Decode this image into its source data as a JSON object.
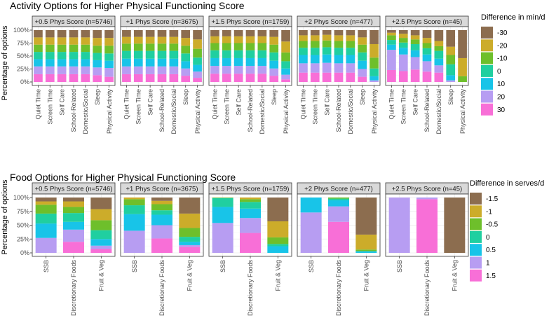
{
  "chart_data": [
    {
      "type": "bar",
      "stacked": "percent",
      "title": "Activity Options for Higher Physical Functioning Score",
      "ylabel": "Percentage of options",
      "xlabel": "",
      "ylim": [
        0,
        1
      ],
      "y_ticks": [
        "0%",
        "25%",
        "50%",
        "75%",
        "100%"
      ],
      "categories": [
        "Quiet Time",
        "Screen Time",
        "Self Care",
        "School-Related",
        "Domestic/Social",
        "Sleep",
        "Physical Activity"
      ],
      "legend": {
        "title": "Difference in min/d",
        "placement": "right",
        "levels": [
          "-30",
          "-20",
          "-10",
          "0",
          "10",
          "20",
          "30"
        ],
        "colors": [
          "#8c6d4f",
          "#ccac2a",
          "#6ebf2b",
          "#20cfa0",
          "#18c4e8",
          "#b79df2",
          "#f86fd7"
        ]
      },
      "facets": [
        {
          "label": "+0.5 Phys Score (n=5746)",
          "stacks": [
            [
              0.14,
              0.14,
              0.14,
              0.14,
              0.14,
              0.15,
              0.15
            ],
            [
              0.14,
              0.14,
              0.14,
              0.14,
              0.14,
              0.15,
              0.15
            ],
            [
              0.14,
              0.14,
              0.14,
              0.14,
              0.14,
              0.14,
              0.15
            ],
            [
              0.14,
              0.14,
              0.14,
              0.14,
              0.14,
              0.14,
              0.14
            ],
            [
              0.14,
              0.14,
              0.14,
              0.14,
              0.14,
              0.14,
              0.14
            ],
            [
              0.15,
              0.15,
              0.15,
              0.15,
              0.15,
              0.15,
              0.17
            ],
            [
              0.15,
              0.15,
              0.15,
              0.15,
              0.15,
              0.13,
              0.1
            ]
          ]
        },
        {
          "label": "+1 Phys Score (n=3675)",
          "stacks": [
            [
              0.13,
              0.13,
              0.13,
              0.13,
              0.13,
              0.15,
              0.18
            ],
            [
              0.13,
              0.13,
              0.13,
              0.13,
              0.13,
              0.15,
              0.18
            ],
            [
              0.14,
              0.14,
              0.14,
              0.14,
              0.14,
              0.15,
              0.17
            ],
            [
              0.15,
              0.15,
              0.15,
              0.15,
              0.15,
              0.15,
              0.14
            ],
            [
              0.15,
              0.15,
              0.15,
              0.15,
              0.15,
              0.14,
              0.13
            ],
            [
              0.15,
              0.15,
              0.15,
              0.15,
              0.15,
              0.14,
              0.12
            ],
            [
              0.15,
              0.15,
              0.15,
              0.15,
              0.15,
              0.12,
              0.08
            ]
          ]
        },
        {
          "label": "+1.5 Phys Score (n=1759)",
          "stacks": [
            [
              0.12,
              0.12,
              0.12,
              0.12,
              0.12,
              0.13,
              0.22
            ],
            [
              0.13,
              0.13,
              0.13,
              0.13,
              0.13,
              0.15,
              0.21
            ],
            [
              0.14,
              0.14,
              0.14,
              0.14,
              0.14,
              0.15,
              0.17
            ],
            [
              0.15,
              0.15,
              0.15,
              0.15,
              0.15,
              0.16,
              0.14
            ],
            [
              0.15,
              0.15,
              0.15,
              0.15,
              0.15,
              0.15,
              0.12
            ],
            [
              0.15,
              0.15,
              0.15,
              0.15,
              0.15,
              0.14,
              0.09
            ],
            [
              0.16,
              0.16,
              0.16,
              0.16,
              0.16,
              0.12,
              0.05
            ]
          ]
        },
        {
          "label": "+2 Phys Score (n=477)",
          "stacks": [
            [
              0.1,
              0.1,
              0.09,
              0.1,
              0.1,
              0.14,
              0.27
            ],
            [
              0.11,
              0.11,
              0.11,
              0.11,
              0.11,
              0.14,
              0.26
            ],
            [
              0.13,
              0.13,
              0.13,
              0.13,
              0.13,
              0.15,
              0.21
            ],
            [
              0.14,
              0.14,
              0.14,
              0.14,
              0.14,
              0.16,
              0.15
            ],
            [
              0.16,
              0.16,
              0.16,
              0.16,
              0.16,
              0.16,
              0.08
            ],
            [
              0.18,
              0.18,
              0.19,
              0.18,
              0.18,
              0.15,
              0.03
            ],
            [
              0.18,
              0.18,
              0.18,
              0.18,
              0.18,
              0.1,
              0.0
            ]
          ]
        },
        {
          "label": "+2.5 Phys Score (n=45)",
          "stacks": [
            [
              0.05,
              0.07,
              0.1,
              0.15,
              0.21,
              0.32,
              0.54
            ],
            [
              0.05,
              0.08,
              0.08,
              0.1,
              0.1,
              0.16,
              0.35
            ],
            [
              0.09,
              0.09,
              0.09,
              0.1,
              0.09,
              0.18,
              0.11
            ],
            [
              0.09,
              0.1,
              0.12,
              0.12,
              0.15,
              0.21,
              0.0
            ],
            [
              0.1,
              0.13,
              0.13,
              0.13,
              0.13,
              0.1,
              0.0
            ],
            [
              0.39,
              0.32,
              0.24,
              0.2,
              0.14,
              0.03,
              0.0
            ],
            [
              0.23,
              0.21,
              0.24,
              0.2,
              0.18,
              0.0,
              0.0
            ]
          ]
        }
      ]
    },
    {
      "type": "bar",
      "stacked": "percent",
      "title": "Food Options for Higher Physical Functioning Score",
      "ylabel": "Percentage of options",
      "xlabel": "",
      "ylim": [
        0,
        1
      ],
      "y_ticks": [
        "0%",
        "25%",
        "50%",
        "75%",
        "100%"
      ],
      "categories": [
        "SSB",
        "Discretionary Foods",
        "Fruit & Veg"
      ],
      "legend": {
        "title": "Difference in serves/d",
        "placement": "right",
        "levels": [
          "-1.5",
          "-1",
          "-0.5",
          "0",
          "0.5",
          "1",
          "1.5"
        ],
        "colors": [
          "#8c6d4f",
          "#ccac2a",
          "#6ebf2b",
          "#20cfa0",
          "#18c4e8",
          "#b79df2",
          "#f86fd7"
        ]
      },
      "facets": [
        {
          "label": "+0.5 Phys Score (n=5746)",
          "stacks": [
            [
              0.07,
              0.07,
              0.21
            ],
            [
              0.06,
              0.1,
              0.2
            ],
            [
              0.16,
              0.11,
              0.18
            ],
            [
              0.18,
              0.16,
              0.16
            ],
            [
              0.26,
              0.14,
              0.12
            ],
            [
              0.27,
              0.22,
              0.06
            ],
            [
              0.0,
              0.2,
              0.07
            ]
          ]
        },
        {
          "label": "+1 Phys Score (n=3675)",
          "stacks": [
            [
              0.0,
              0.06,
              0.29
            ],
            [
              0.03,
              0.06,
              0.26
            ],
            [
              0.11,
              0.11,
              0.16
            ],
            [
              0.16,
              0.08,
              0.09
            ],
            [
              0.3,
              0.19,
              0.06
            ],
            [
              0.4,
              0.24,
              0.03
            ],
            [
              0.0,
              0.26,
              0.11
            ]
          ]
        },
        {
          "label": "+1.5 Phys Score (n=1759)",
          "stacks": [
            [
              0.0,
              0.0,
              0.43
            ],
            [
              0.0,
              0.03,
              0.29
            ],
            [
              0.01,
              0.05,
              0.12
            ],
            [
              0.16,
              0.12,
              0.04
            ],
            [
              0.29,
              0.17,
              0.12
            ],
            [
              0.54,
              0.27,
              0.0
            ],
            [
              0.0,
              0.36,
              0.0
            ]
          ]
        },
        {
          "label": "+2 Phys Score (n=477)",
          "stacks": [
            [
              0.0,
              0.0,
              0.67
            ],
            [
              0.0,
              0.0,
              0.27
            ],
            [
              0.0,
              0.02,
              0.03
            ],
            [
              0.0,
              0.03,
              0.0
            ],
            [
              0.27,
              0.11,
              0.03
            ],
            [
              0.73,
              0.28,
              0.0
            ],
            [
              0.0,
              0.56,
              0.0
            ]
          ]
        },
        {
          "label": "+2.5 Phys Score (n=45)",
          "stacks": [
            [
              0.0,
              0.0,
              1.0
            ],
            [
              0.0,
              0.0,
              0.0
            ],
            [
              0.0,
              0.0,
              0.0
            ],
            [
              0.0,
              0.0,
              0.0
            ],
            [
              0.0,
              0.0,
              0.0
            ],
            [
              1.0,
              0.03,
              0.0
            ],
            [
              0.0,
              0.97,
              0.0
            ]
          ]
        }
      ]
    }
  ]
}
